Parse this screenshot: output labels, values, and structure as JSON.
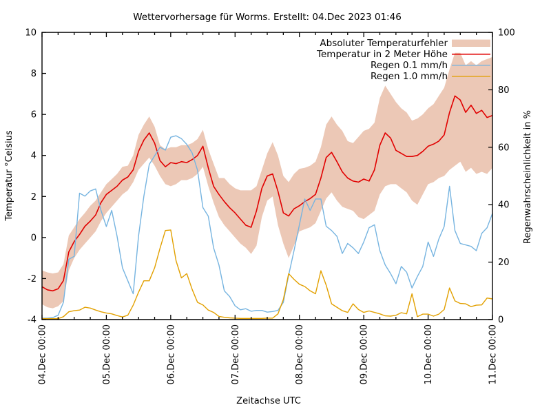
{
  "title": "Wettervorhersage für Worms. Erstellt: 04.Dec 2023 01:46",
  "chart_data": {
    "type": "line",
    "title": "Wettervorhersage für Worms. Erstellt: 04.Dec 2023 01:46",
    "xlabel": "Zeitachse UTC",
    "ylabel_left": "Temperatur °Celsius",
    "ylabel_right": "Regenwahrscheinlichkeit in %",
    "y_left_range": [
      -4,
      10
    ],
    "y_right_range": [
      0,
      100
    ],
    "y_left_ticks": [
      "-4",
      "-2",
      "0",
      "2",
      "4",
      "6",
      "8",
      "10"
    ],
    "y_right_ticks": [
      "0",
      "20",
      "40",
      "60",
      "80",
      "100"
    ],
    "x_range_hours": [
      0,
      168
    ],
    "x_hours_step": 2,
    "x_minor_tick_hours": 6,
    "x_major_tick_hours": 24,
    "x_day_labels": [
      "04.Dec 00:00",
      "05.Dec 00:00",
      "06.Dec 00:00",
      "07.Dec 00:00",
      "08.Dec 00:00",
      "09.Dec 00:00",
      "10.Dec 00:00",
      "11.Dec 00:00"
    ],
    "grid": false,
    "legend_position": "top-right-inside",
    "series": [
      {
        "name": "Absoluter Temperaturfehler",
        "type": "band",
        "axis": "left",
        "color": "#ecc8b6",
        "upper": [
          -1.6,
          -1.7,
          -1.75,
          -1.7,
          -1.3,
          0.1,
          0.5,
          0.9,
          1.2,
          1.55,
          1.8,
          2.2,
          2.6,
          2.85,
          3.1,
          3.45,
          3.5,
          4.0,
          5.0,
          5.5,
          5.9,
          5.4,
          4.5,
          4.3,
          4.4,
          4.4,
          4.5,
          4.5,
          4.6,
          4.8,
          5.25,
          4.3,
          3.6,
          2.9,
          2.9,
          2.6,
          2.4,
          2.3,
          2.3,
          2.3,
          2.5,
          3.3,
          4.1,
          4.65,
          4.0,
          3.0,
          2.7,
          3.1,
          3.35,
          3.4,
          3.5,
          3.7,
          4.4,
          5.5,
          5.9,
          5.5,
          5.2,
          4.7,
          4.6,
          4.9,
          5.2,
          5.3,
          5.6,
          6.8,
          7.4,
          7.0,
          6.6,
          6.3,
          6.1,
          5.7,
          5.8,
          6.0,
          6.3,
          6.5,
          6.9,
          7.3,
          8.2,
          9.0,
          9.0,
          8.4,
          8.6,
          8.4,
          8.6,
          8.7,
          8.8
        ],
        "lower": [
          -3.25,
          -3.4,
          -3.45,
          -3.35,
          -3.1,
          -1.6,
          -1.0,
          -0.6,
          -0.3,
          0.0,
          0.3,
          0.8,
          1.2,
          1.5,
          1.8,
          2.1,
          2.3,
          2.7,
          3.3,
          3.6,
          3.9,
          3.5,
          3.0,
          2.6,
          2.5,
          2.6,
          2.8,
          2.8,
          2.9,
          3.1,
          3.45,
          2.5,
          1.7,
          1.0,
          0.6,
          0.3,
          0.0,
          -0.3,
          -0.5,
          -0.8,
          -0.4,
          1.0,
          1.8,
          2.0,
          0.6,
          -0.3,
          -1.0,
          -0.4,
          0.3,
          0.4,
          0.5,
          0.7,
          1.3,
          1.9,
          2.2,
          1.8,
          1.5,
          1.4,
          1.3,
          1.0,
          0.9,
          1.1,
          1.3,
          2.1,
          2.5,
          2.6,
          2.6,
          2.4,
          2.2,
          1.8,
          1.6,
          2.1,
          2.6,
          2.7,
          2.9,
          3.0,
          3.3,
          3.5,
          3.7,
          3.2,
          3.4,
          3.1,
          3.2,
          3.1,
          3.4
        ]
      },
      {
        "name": "Temperatur in 2 Meter Höhe",
        "type": "line",
        "axis": "left",
        "color": "#e10000",
        "values": [
          -2.4,
          -2.55,
          -2.6,
          -2.5,
          -2.1,
          -0.7,
          -0.2,
          0.15,
          0.55,
          0.8,
          1.1,
          1.7,
          2.1,
          2.3,
          2.5,
          2.8,
          2.95,
          3.3,
          4.2,
          4.75,
          5.1,
          4.6,
          3.75,
          3.45,
          3.65,
          3.6,
          3.7,
          3.65,
          3.8,
          4.0,
          4.45,
          3.4,
          2.5,
          2.1,
          1.75,
          1.45,
          1.2,
          0.9,
          0.6,
          0.5,
          1.3,
          2.4,
          3.0,
          3.1,
          2.25,
          1.2,
          1.05,
          1.4,
          1.55,
          1.75,
          1.9,
          2.1,
          2.9,
          3.9,
          4.15,
          3.7,
          3.2,
          2.9,
          2.75,
          2.7,
          2.85,
          2.75,
          3.3,
          4.5,
          5.1,
          4.85,
          4.25,
          4.1,
          3.95,
          3.95,
          4.0,
          4.2,
          4.45,
          4.55,
          4.7,
          5.0,
          6.1,
          6.9,
          6.7,
          6.1,
          6.45,
          6.05,
          6.2,
          5.85,
          5.95
        ]
      },
      {
        "name": "Regen 0.1 mm/h",
        "type": "line",
        "axis": "right",
        "color": "#76b4e0",
        "values": [
          0.5,
          0.5,
          0.7,
          1.5,
          6,
          21,
          22,
          44,
          43,
          44.8,
          45.5,
          38,
          32.4,
          38,
          29,
          18,
          13.5,
          9,
          29,
          43,
          54,
          57,
          60,
          59,
          63.5,
          64,
          63,
          61,
          58,
          52,
          39,
          36,
          25,
          19,
          10,
          8,
          4.8,
          3.4,
          3.8,
          2.9,
          3.2,
          3.2,
          2.6,
          2.8,
          3.2,
          6,
          15.5,
          24,
          33,
          42,
          38,
          42,
          42,
          32.5,
          31,
          29,
          23,
          26.5,
          25,
          23,
          27,
          32,
          33,
          24,
          19,
          16,
          12.5,
          18.5,
          16.5,
          11,
          15,
          18.5,
          27,
          22,
          28,
          32.4,
          46.4,
          31,
          26.5,
          26,
          25.5,
          24,
          30,
          32,
          37
        ]
      },
      {
        "name": "Regen 1.0 mm/h",
        "type": "line",
        "axis": "right",
        "color": "#e2a000",
        "values": [
          0.3,
          0.3,
          0.3,
          0.3,
          1,
          2.7,
          3.1,
          3.3,
          4.3,
          4.0,
          3.3,
          2.7,
          2.3,
          2.0,
          1.4,
          0.9,
          1.5,
          5,
          9.5,
          13.5,
          13.5,
          18,
          24.8,
          31,
          31.2,
          20.5,
          14.5,
          16,
          10.5,
          6,
          5.1,
          3.3,
          2.5,
          1.1,
          0.8,
          0.6,
          0.5,
          0.4,
          0.4,
          0.4,
          0.4,
          0.4,
          0.5,
          0.5,
          2,
          7,
          16,
          14,
          12.3,
          11.5,
          10,
          9,
          17,
          12,
          5.5,
          4.3,
          3.1,
          2.5,
          5.5,
          3.5,
          2.5,
          3,
          2.5,
          2,
          1.3,
          1.2,
          1.5,
          2.4,
          2,
          9,
          1,
          1.9,
          1.9,
          1.2,
          1.9,
          3.5,
          11,
          6.5,
          5.6,
          5.5,
          4.5,
          5,
          5.1,
          7.5,
          7.2
        ]
      }
    ]
  }
}
